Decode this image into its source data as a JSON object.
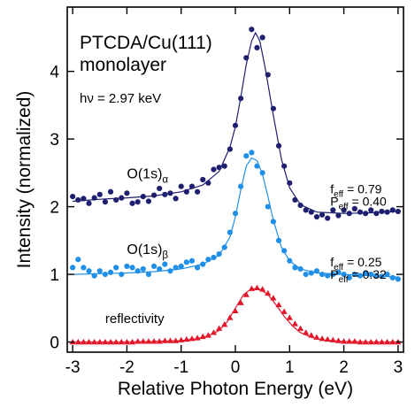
{
  "chart_data": {
    "type": "scatter",
    "title_lines": [
      "PTCDA/Cu(111)",
      "monolayer"
    ],
    "energy_note": "hν = 2.97 keV",
    "xlabel": "Relative Photon Energy (eV)",
    "ylabel": "Intensity (normalized)",
    "xlim": [
      -3.1,
      3.1
    ],
    "ylim": [
      -0.15,
      4.95
    ],
    "xticks": [
      -3,
      -2,
      -1,
      0,
      1,
      2,
      3
    ],
    "yticks": [
      0,
      1,
      2,
      3,
      4
    ],
    "xtick_labels": [
      "-3",
      "-2",
      "-1",
      "0",
      "1",
      "2",
      "3"
    ],
    "ytick_labels": [
      "0",
      "1",
      "2",
      "3",
      "4"
    ],
    "grid": false,
    "legend": "none",
    "series": [
      {
        "label_main": "O(1s)",
        "label_sub": "α",
        "color": "#1f1f70",
        "marker": "circle",
        "params": [
          {
            "main": "f",
            "sub": "eff",
            "value": "= 0.79"
          },
          {
            "main": "P",
            "sub": "eff",
            "value": "= 0.40"
          }
        ],
        "fit_x": [
          -3.0,
          -2.5,
          -2.0,
          -1.5,
          -1.0,
          -0.6,
          -0.3,
          -0.1,
          0.0,
          0.1,
          0.2,
          0.3,
          0.37,
          0.45,
          0.55,
          0.7,
          0.85,
          1.0,
          1.2,
          1.5,
          2.0,
          2.5,
          3.0
        ],
        "fit_y": [
          2.08,
          2.11,
          2.13,
          2.16,
          2.22,
          2.32,
          2.52,
          2.88,
          3.18,
          3.62,
          4.1,
          4.45,
          4.57,
          4.45,
          4.05,
          3.35,
          2.7,
          2.28,
          2.03,
          1.92,
          1.9,
          1.91,
          1.93
        ],
        "points_x": [
          -3.0,
          -2.9,
          -2.8,
          -2.7,
          -2.6,
          -2.5,
          -2.4,
          -2.3,
          -2.2,
          -2.1,
          -2.0,
          -1.9,
          -1.8,
          -1.7,
          -1.6,
          -1.5,
          -1.4,
          -1.3,
          -1.2,
          -1.1,
          -1.0,
          -0.9,
          -0.8,
          -0.7,
          -0.6,
          -0.5,
          -0.4,
          -0.3,
          -0.2,
          -0.1,
          0.0,
          0.1,
          0.2,
          0.3,
          0.4,
          0.5,
          0.6,
          0.7,
          0.8,
          0.9,
          1.0,
          1.1,
          1.2,
          1.3,
          1.4,
          1.5,
          1.6,
          1.7,
          1.8,
          1.9,
          2.0,
          2.1,
          2.2,
          2.3,
          2.4,
          2.5,
          2.6,
          2.7,
          2.8,
          2.9,
          3.0
        ],
        "points_y": [
          2.15,
          2.1,
          2.12,
          2.05,
          2.13,
          2.18,
          2.07,
          2.22,
          2.1,
          2.13,
          2.2,
          2.05,
          2.07,
          2.15,
          2.08,
          2.17,
          2.27,
          2.18,
          2.2,
          2.12,
          2.3,
          2.22,
          2.3,
          2.22,
          2.4,
          2.35,
          2.55,
          2.58,
          2.6,
          2.85,
          3.2,
          3.6,
          4.2,
          4.62,
          4.35,
          4.5,
          3.95,
          3.45,
          2.9,
          2.6,
          2.35,
          2.1,
          2.02,
          1.95,
          1.92,
          1.85,
          1.88,
          1.83,
          1.95,
          1.87,
          1.95,
          1.9,
          1.97,
          1.92,
          1.9,
          1.95,
          1.9,
          1.93,
          1.92,
          1.95,
          1.93
        ]
      },
      {
        "label_main": "O(1s)",
        "label_sub": "β",
        "color": "#1f8fe8",
        "marker": "circle",
        "params": [
          {
            "main": "f",
            "sub": "eff",
            "value": "= 0.25"
          },
          {
            "main": "P",
            "sub": "eff",
            "value": "= 0.32"
          }
        ],
        "fit_x": [
          -3.0,
          -2.5,
          -2.0,
          -1.5,
          -1.0,
          -0.6,
          -0.3,
          -0.1,
          0.0,
          0.1,
          0.2,
          0.3,
          0.4,
          0.5,
          0.6,
          0.7,
          0.85,
          1.0,
          1.2,
          1.5,
          2.0,
          2.5,
          3.0
        ],
        "fit_y": [
          1.0,
          1.01,
          1.02,
          1.04,
          1.08,
          1.15,
          1.28,
          1.55,
          1.85,
          2.25,
          2.6,
          2.72,
          2.68,
          2.48,
          2.15,
          1.8,
          1.4,
          1.2,
          1.08,
          1.02,
          1.0,
          0.98,
          0.96
        ],
        "points_x": [
          -3.0,
          -2.9,
          -2.8,
          -2.7,
          -2.6,
          -2.5,
          -2.4,
          -2.3,
          -2.2,
          -2.1,
          -2.0,
          -1.9,
          -1.8,
          -1.7,
          -1.6,
          -1.5,
          -1.4,
          -1.3,
          -1.2,
          -1.1,
          -1.0,
          -0.9,
          -0.8,
          -0.7,
          -0.6,
          -0.5,
          -0.4,
          -0.3,
          -0.2,
          -0.1,
          0.0,
          0.1,
          0.2,
          0.3,
          0.4,
          0.5,
          0.6,
          0.7,
          0.8,
          0.9,
          1.0,
          1.1,
          1.2,
          1.3,
          1.4,
          1.5,
          1.6,
          1.7,
          1.8,
          1.9,
          2.0,
          2.1,
          2.2,
          2.3,
          2.4,
          2.5,
          2.6,
          2.7,
          2.8,
          2.9,
          3.0
        ],
        "points_y": [
          1.1,
          1.22,
          1.1,
          1.05,
          0.98,
          1.05,
          1.0,
          1.03,
          1.1,
          1.0,
          1.12,
          1.1,
          1.05,
          1.08,
          1.0,
          1.12,
          1.08,
          1.15,
          1.05,
          1.1,
          1.12,
          1.18,
          1.2,
          1.1,
          1.15,
          1.22,
          1.25,
          1.3,
          1.4,
          1.62,
          1.9,
          2.3,
          2.75,
          2.8,
          2.6,
          2.5,
          2.0,
          1.78,
          1.5,
          1.35,
          1.2,
          1.1,
          1.08,
          1.0,
          1.02,
          1.05,
          1.0,
          0.98,
          1.0,
          1.03,
          1.0,
          0.95,
          1.0,
          0.98,
          1.02,
          1.0,
          0.98,
          0.97,
          1.0,
          0.95,
          0.93
        ]
      },
      {
        "label_main": "reflectivity",
        "label_sub": "",
        "color": "#e0182a",
        "marker": "triangle",
        "params": [],
        "fit_x": [
          -3.0,
          -2.0,
          -1.5,
          -1.0,
          -0.7,
          -0.5,
          -0.3,
          -0.15,
          0.0,
          0.15,
          0.3,
          0.45,
          0.6,
          0.75,
          0.9,
          1.05,
          1.2,
          1.4,
          1.6,
          2.0,
          2.5,
          3.0
        ],
        "fit_y": [
          0.0,
          0.0,
          0.01,
          0.02,
          0.05,
          0.09,
          0.17,
          0.3,
          0.5,
          0.7,
          0.79,
          0.78,
          0.7,
          0.55,
          0.38,
          0.24,
          0.14,
          0.07,
          0.03,
          0.01,
          0.0,
          0.0
        ],
        "points_x": [
          -3.0,
          -2.9,
          -2.8,
          -2.7,
          -2.6,
          -2.5,
          -2.4,
          -2.3,
          -2.2,
          -2.1,
          -2.0,
          -1.9,
          -1.8,
          -1.7,
          -1.6,
          -1.5,
          -1.4,
          -1.3,
          -1.2,
          -1.1,
          -1.0,
          -0.9,
          -0.8,
          -0.7,
          -0.6,
          -0.5,
          -0.4,
          -0.3,
          -0.2,
          -0.1,
          0.0,
          0.1,
          0.2,
          0.3,
          0.4,
          0.5,
          0.6,
          0.7,
          0.8,
          0.9,
          1.0,
          1.1,
          1.2,
          1.3,
          1.4,
          1.5,
          1.6,
          1.7,
          1.8,
          1.9,
          2.0,
          2.1,
          2.2,
          2.3,
          2.4,
          2.5,
          2.6,
          2.7,
          2.8,
          2.9,
          3.0
        ],
        "points_y": [
          0.0,
          0.0,
          0.0,
          0.0,
          0.0,
          0.0,
          0.0,
          0.0,
          0.0,
          0.0,
          0.0,
          0.0,
          0.01,
          0.01,
          0.01,
          0.01,
          0.01,
          0.02,
          0.02,
          0.02,
          0.03,
          0.04,
          0.05,
          0.06,
          0.08,
          0.1,
          0.14,
          0.2,
          0.26,
          0.36,
          0.46,
          0.58,
          0.7,
          0.79,
          0.8,
          0.78,
          0.72,
          0.65,
          0.55,
          0.45,
          0.36,
          0.27,
          0.2,
          0.14,
          0.1,
          0.07,
          0.05,
          0.04,
          0.03,
          0.02,
          0.01,
          0.01,
          0.01,
          0.0,
          0.0,
          0.0,
          0.0,
          0.0,
          0.0,
          0.0,
          0.0
        ]
      }
    ]
  }
}
